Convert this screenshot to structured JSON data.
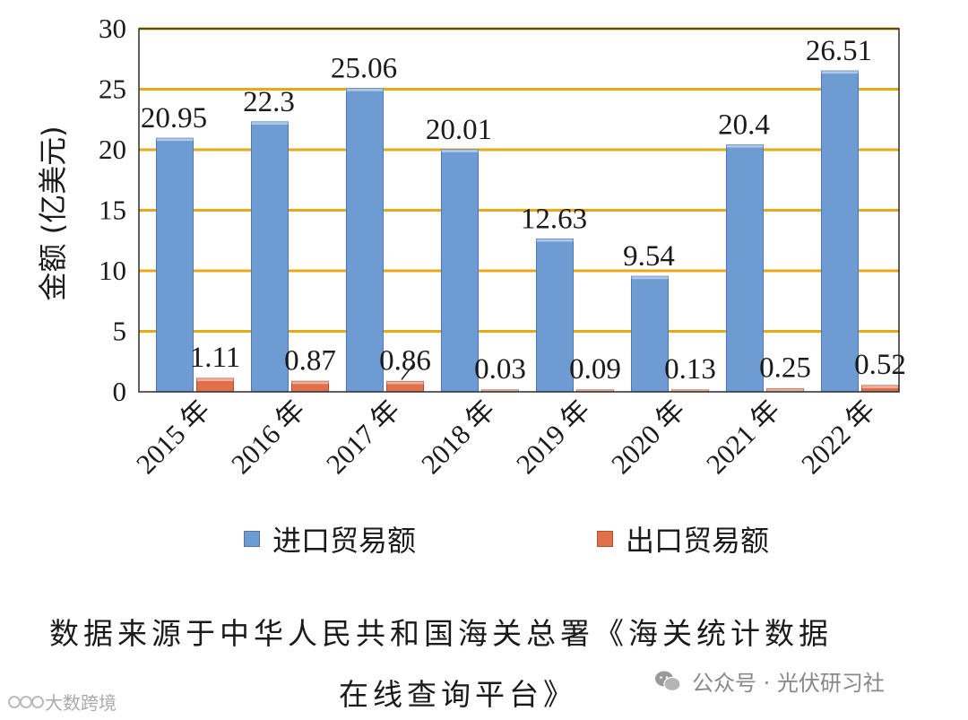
{
  "chart_data": {
    "type": "bar",
    "categories": [
      "2015 年",
      "2016 年",
      "2017 年",
      "2018 年",
      "2019 年",
      "2020 年",
      "2021 年",
      "2022 年"
    ],
    "series": [
      {
        "name": "进口贸易额",
        "values": [
          20.95,
          22.3,
          25.06,
          20.01,
          12.63,
          9.54,
          20.4,
          26.51
        ],
        "labels": [
          "20.95",
          "22.3",
          "25.06",
          "20.01",
          "12.63",
          "9.54",
          "20.4",
          "26.51"
        ],
        "color": "#6f9bd3"
      },
      {
        "name": "出口贸易额",
        "values": [
          1.11,
          0.87,
          0.86,
          0.03,
          0.09,
          0.13,
          0.25,
          0.52
        ],
        "labels": [
          "1.11",
          "0.87",
          "0.86",
          "0.03",
          "0.09",
          "0.13",
          "0.25",
          "0.52"
        ],
        "color": "#e0704a"
      }
    ],
    "ylabel": "金额 (亿美元)",
    "xlabel": "",
    "ylim": [
      0,
      30
    ],
    "yticks": [
      0,
      5,
      10,
      15,
      20,
      25,
      30
    ],
    "grid": true,
    "grid_color": "#e8a817",
    "legend_position": "bottom"
  },
  "caption": {
    "line1": "数据来源于中华人民共和国海关总署《海关统计数据",
    "line2": "在线查询平台》"
  },
  "watermarks": {
    "right": "公众号 · 光伏研习社",
    "left": "大数跨境"
  }
}
